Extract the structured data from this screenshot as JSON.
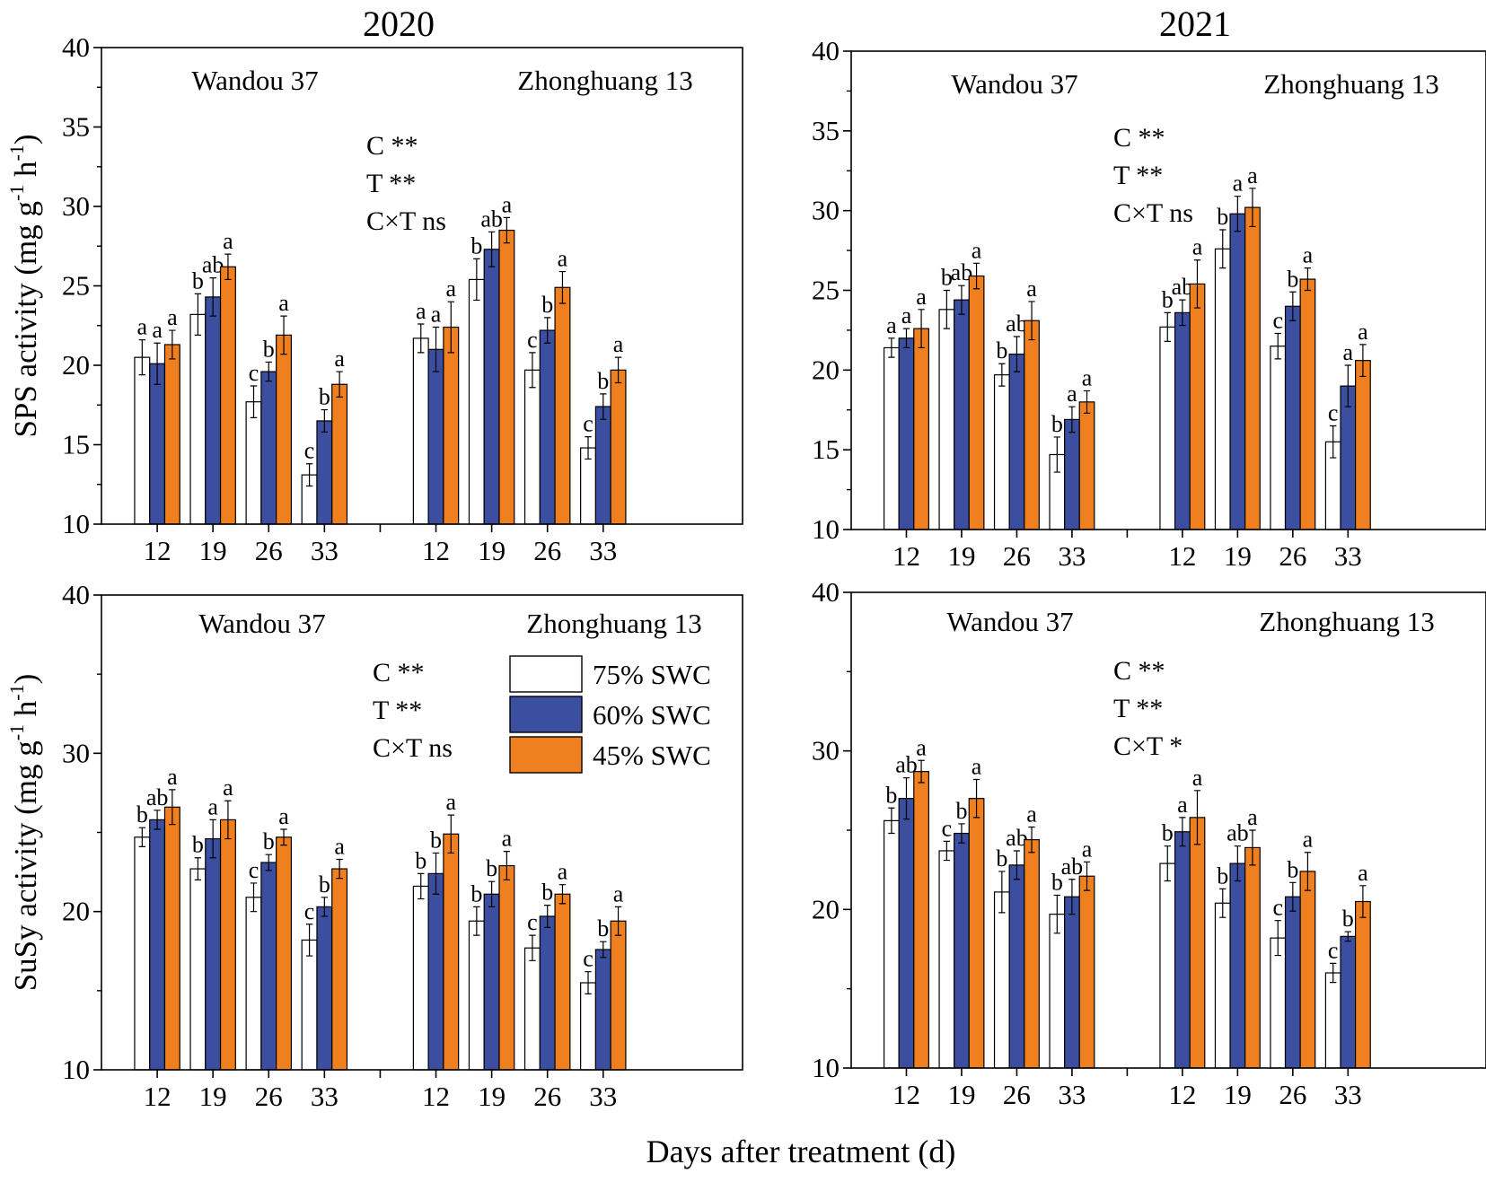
{
  "figure": {
    "xlabel": "Days after treatment (d)",
    "colors": {
      "75% SWC": "#ffffff",
      "60% SWC": "#3b4ea0",
      "45% SWC": "#f0801f"
    }
  },
  "chart_data": [
    {
      "id": "sps2020",
      "type": "bar",
      "title": "2020",
      "ylabel": "SPS activity (mg g-1 h-1)",
      "ylim": [
        10,
        40
      ],
      "yticks": [
        10,
        15,
        20,
        25,
        30,
        35,
        40
      ],
      "groups": [
        "Wandou 37",
        "Zhonghuang 13"
      ],
      "categories": [
        "12",
        "19",
        "26",
        "33"
      ],
      "stats": [
        "C **",
        "T **",
        "C×T ns"
      ],
      "series": [
        {
          "name": "75% SWC",
          "color": "#ffffff",
          "values": [
            [
              20.5,
              23.2,
              17.7,
              13.1
            ],
            [
              21.7,
              25.4,
              19.7,
              14.8
            ]
          ],
          "errors": [
            [
              1.1,
              1.3,
              1.0,
              0.7
            ],
            [
              0.9,
              1.3,
              1.1,
              0.7
            ]
          ],
          "letters": [
            [
              "a",
              "b",
              "c",
              "c"
            ],
            [
              "a",
              "b",
              "c",
              "c"
            ]
          ]
        },
        {
          "name": "60% SWC",
          "color": "#3b4ea0",
          "values": [
            [
              20.1,
              24.3,
              19.6,
              16.5
            ],
            [
              21.0,
              27.3,
              22.2,
              17.4
            ]
          ],
          "errors": [
            [
              1.3,
              1.2,
              0.6,
              0.7
            ],
            [
              1.4,
              1.1,
              0.8,
              0.8
            ]
          ],
          "letters": [
            [
              "a",
              "ab",
              "b",
              "b"
            ],
            [
              "a",
              "ab",
              "b",
              "b"
            ]
          ]
        },
        {
          "name": "45% SWC",
          "color": "#f0801f",
          "values": [
            [
              21.3,
              26.2,
              21.9,
              18.8
            ],
            [
              22.4,
              28.5,
              24.9,
              19.7
            ]
          ],
          "errors": [
            [
              0.9,
              0.8,
              1.2,
              0.8
            ],
            [
              1.6,
              0.8,
              1.0,
              0.8
            ]
          ],
          "letters": [
            [
              "a",
              "a",
              "a",
              "a"
            ],
            [
              "a",
              "a",
              "a",
              "a"
            ]
          ]
        }
      ]
    },
    {
      "id": "sps2021",
      "type": "bar",
      "title": "2021",
      "ylabel": "",
      "ylim": [
        10,
        40
      ],
      "yticks": [
        10,
        15,
        20,
        25,
        30,
        35,
        40
      ],
      "groups": [
        "Wandou 37",
        "Zhonghuang 13"
      ],
      "categories": [
        "12",
        "19",
        "26",
        "33"
      ],
      "stats": [
        "C **",
        "T **",
        "C×T ns"
      ],
      "series": [
        {
          "name": "75% SWC",
          "color": "#ffffff",
          "values": [
            [
              21.4,
              23.8,
              19.7,
              14.7
            ],
            [
              22.7,
              27.6,
              21.5,
              15.5
            ]
          ],
          "errors": [
            [
              0.6,
              1.2,
              0.7,
              1.1
            ],
            [
              0.9,
              1.2,
              0.8,
              1.0
            ]
          ],
          "letters": [
            [
              "a",
              "b",
              "b",
              "b"
            ],
            [
              "b",
              "b",
              "c",
              "c"
            ]
          ]
        },
        {
          "name": "60% SWC",
          "color": "#3b4ea0",
          "values": [
            [
              22.0,
              24.4,
              21.0,
              16.9
            ],
            [
              23.6,
              29.8,
              24.0,
              19.0
            ]
          ],
          "errors": [
            [
              0.6,
              0.9,
              1.1,
              0.8
            ],
            [
              0.8,
              1.1,
              0.9,
              1.3
            ]
          ],
          "letters": [
            [
              "a",
              "ab",
              "ab",
              "a"
            ],
            [
              "ab",
              "a",
              "b",
              "a"
            ]
          ]
        },
        {
          "name": "45% SWC",
          "color": "#f0801f",
          "values": [
            [
              22.6,
              25.9,
              23.1,
              18.0
            ],
            [
              25.4,
              30.2,
              25.7,
              20.6
            ]
          ],
          "errors": [
            [
              1.2,
              0.8,
              1.2,
              0.7
            ],
            [
              1.5,
              1.2,
              0.7,
              1.0
            ]
          ],
          "letters": [
            [
              "a",
              "a",
              "a",
              "a"
            ],
            [
              "a",
              "a",
              "a",
              "a"
            ]
          ]
        }
      ]
    },
    {
      "id": "susy2020",
      "type": "bar",
      "title": "",
      "ylabel": "SuSy activity (mg g-1 h-1)",
      "ylim": [
        10,
        40
      ],
      "yticks": [
        10,
        20,
        30,
        40
      ],
      "groups": [
        "Wandou 37",
        "Zhonghuang 13"
      ],
      "categories": [
        "12",
        "19",
        "26",
        "33"
      ],
      "stats": [
        "C **",
        "T **",
        "C×T ns"
      ],
      "series": [
        {
          "name": "75% SWC",
          "color": "#ffffff",
          "values": [
            [
              24.7,
              22.7,
              20.9,
              18.2
            ],
            [
              21.6,
              19.4,
              17.7,
              15.5
            ]
          ],
          "errors": [
            [
              0.6,
              0.7,
              0.9,
              1.0
            ],
            [
              0.8,
              0.9,
              0.8,
              0.7
            ]
          ],
          "letters": [
            [
              "b",
              "b",
              "c",
              "c"
            ],
            [
              "b",
              "b",
              "c",
              "c"
            ]
          ]
        },
        {
          "name": "60% SWC",
          "color": "#3b4ea0",
          "values": [
            [
              25.8,
              24.6,
              23.1,
              20.3
            ],
            [
              22.4,
              21.1,
              19.7,
              17.6
            ]
          ],
          "errors": [
            [
              0.6,
              1.2,
              0.5,
              0.6
            ],
            [
              1.3,
              0.8,
              0.7,
              0.5
            ]
          ],
          "letters": [
            [
              "ab",
              "a",
              "b",
              "b"
            ],
            [
              "b",
              "b",
              "b",
              "b"
            ]
          ]
        },
        {
          "name": "45% SWC",
          "color": "#f0801f",
          "values": [
            [
              26.6,
              25.8,
              24.7,
              22.7
            ],
            [
              24.9,
              22.9,
              21.1,
              19.4
            ]
          ],
          "errors": [
            [
              1.1,
              1.2,
              0.5,
              0.6
            ],
            [
              1.2,
              0.9,
              0.6,
              0.9
            ]
          ],
          "letters": [
            [
              "a",
              "a",
              "a",
              "a"
            ],
            [
              "a",
              "a",
              "a",
              "a"
            ]
          ]
        }
      ],
      "legend": {
        "position": "top-right",
        "entries": [
          "75% SWC",
          "60% SWC",
          "45% SWC"
        ]
      }
    },
    {
      "id": "susy2021",
      "type": "bar",
      "title": "",
      "ylabel": "",
      "ylim": [
        10,
        40
      ],
      "yticks": [
        10,
        20,
        30,
        40
      ],
      "groups": [
        "Wandou 37",
        "Zhonghuang 13"
      ],
      "categories": [
        "12",
        "19",
        "26",
        "33"
      ],
      "stats": [
        "C **",
        "T **",
        "C×T *"
      ],
      "series": [
        {
          "name": "75% SWC",
          "color": "#ffffff",
          "values": [
            [
              25.6,
              23.7,
              21.1,
              19.7
            ],
            [
              22.9,
              20.4,
              18.2,
              16.0
            ]
          ],
          "errors": [
            [
              0.8,
              0.6,
              1.3,
              1.2
            ],
            [
              1.1,
              0.9,
              1.1,
              0.6
            ]
          ],
          "letters": [
            [
              "b",
              "c",
              "b",
              "b"
            ],
            [
              "b",
              "b",
              "c",
              "c"
            ]
          ]
        },
        {
          "name": "60% SWC",
          "color": "#3b4ea0",
          "values": [
            [
              27.0,
              24.8,
              22.8,
              20.8
            ],
            [
              24.9,
              22.9,
              20.8,
              18.3
            ]
          ],
          "errors": [
            [
              1.3,
              0.6,
              0.9,
              1.1
            ],
            [
              0.9,
              1.1,
              0.9,
              0.3
            ]
          ],
          "letters": [
            [
              "ab",
              "b",
              "ab",
              "ab"
            ],
            [
              "a",
              "ab",
              "b",
              "b"
            ]
          ]
        },
        {
          "name": "45% SWC",
          "color": "#f0801f",
          "values": [
            [
              28.7,
              27.0,
              24.4,
              22.1
            ],
            [
              25.8,
              23.9,
              22.4,
              20.5
            ]
          ],
          "errors": [
            [
              0.7,
              1.2,
              0.8,
              0.9
            ],
            [
              1.7,
              1.1,
              1.2,
              1.0
            ]
          ],
          "letters": [
            [
              "a",
              "a",
              "a",
              "a"
            ],
            [
              "a",
              "a",
              "a",
              "a"
            ]
          ]
        }
      ]
    }
  ]
}
